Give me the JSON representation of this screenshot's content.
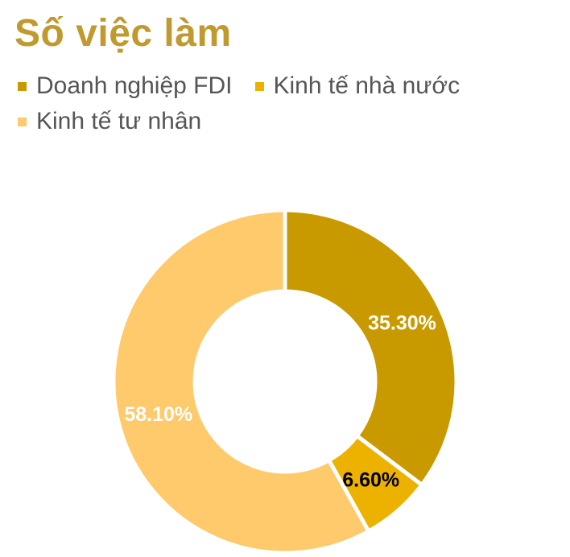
{
  "title": "Số việc làm",
  "chart_data": {
    "type": "pie",
    "donut": true,
    "title": "Số việc làm",
    "legend_position": "top",
    "series": [
      {
        "name": "Doanh nghiệp FDI",
        "value": 35.3,
        "label": "35.30%",
        "color": "#C99A00",
        "label_color": "#ffffff"
      },
      {
        "name": "Kinh tế nhà nước",
        "value": 6.6,
        "label": "6.60%",
        "color": "#EDB100",
        "label_color": "#000000"
      },
      {
        "name": "Kinh tế tư nhân",
        "value": 58.1,
        "label": "58.10%",
        "color": "#FECA6B",
        "label_color": "#ffffff"
      }
    ]
  }
}
